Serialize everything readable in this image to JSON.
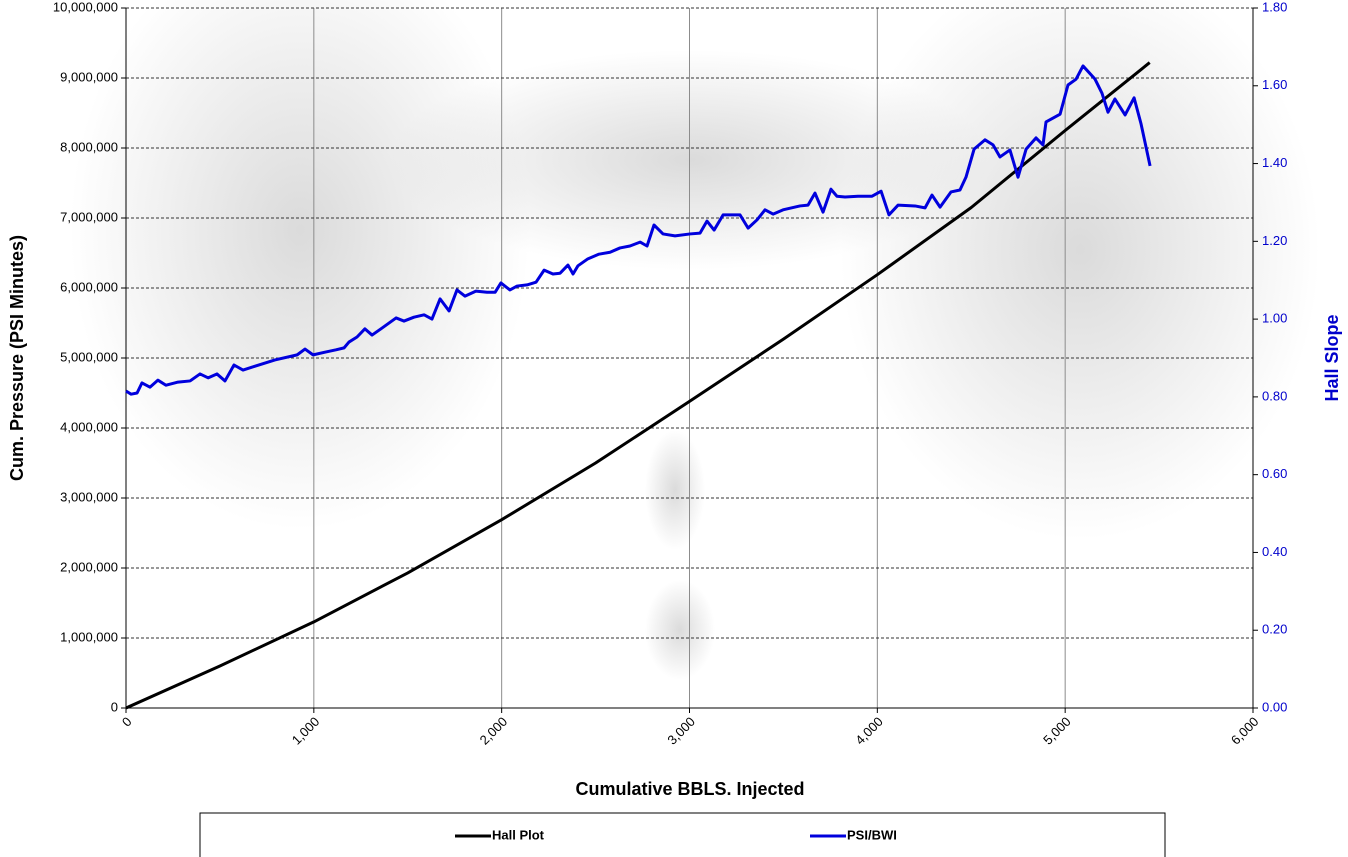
{
  "chart_data": {
    "type": "line",
    "xlabel": "Cumulative BBLS. Injected",
    "ylabel": "Cum. Pressure (PSI Minutes)",
    "y2label": "Hall Slope",
    "xlim": [
      0,
      6000
    ],
    "xticks": [
      0,
      {
        "value": 1000,
        "label": "1,000"
      },
      {
        "value": 2000,
        "label": "2,000"
      },
      {
        "value": 3000,
        "label": "3,000"
      },
      {
        "value": 4000,
        "label": "4,000"
      },
      {
        "value": 5000,
        "label": "5,000"
      },
      {
        "value": 6000,
        "label": "6,000"
      }
    ],
    "ylim": [
      0,
      10000000
    ],
    "yticks": [
      0,
      {
        "value": 1000000,
        "label": "1,000,000"
      },
      {
        "value": 2000000,
        "label": "2,000,000"
      },
      {
        "value": 3000000,
        "label": "3,000,000"
      },
      {
        "value": 4000000,
        "label": "4,000,000"
      },
      {
        "value": 5000000,
        "label": "5,000,000"
      },
      {
        "value": 6000000,
        "label": "6,000,000"
      },
      {
        "value": 7000000,
        "label": "7,000,000"
      },
      {
        "value": 8000000,
        "label": "8,000,000"
      },
      {
        "value": 9000000,
        "label": "9,000,000"
      },
      {
        "value": 10000000,
        "label": "10,000,000"
      }
    ],
    "y2lim": [
      0,
      1.8
    ],
    "y2ticks": [
      {
        "value": 0,
        "label": "0.00"
      },
      {
        "value": 0.2,
        "label": "0.20"
      },
      {
        "value": 0.4,
        "label": "0.40"
      },
      {
        "value": 0.6,
        "label": "0.60"
      },
      {
        "value": 0.8,
        "label": "0.80"
      },
      {
        "value": 1.0,
        "label": "1.00"
      },
      {
        "value": 1.2,
        "label": "1.20"
      },
      {
        "value": 1.4,
        "label": "1.40"
      },
      {
        "value": 1.6,
        "label": "1.60"
      },
      {
        "value": 1.8,
        "label": "1.80"
      }
    ],
    "grid": true,
    "y2color": "#0000cc",
    "series": [
      {
        "name": "Hall Plot",
        "color": "#000000",
        "x": [
          0,
          500,
          1000,
          1500,
          2000,
          2500,
          3000,
          3500,
          4000,
          4500,
          5000,
          5450
        ],
        "values": [
          0,
          600000,
          1230000,
          1930000,
          2690000,
          3500000,
          4380000,
          5270000,
          6190000,
          7150000,
          8250000,
          9220000
        ]
      },
      {
        "name": "PSI/BWI",
        "color": "#0000dd",
        "axis": "y2",
        "x": [
          0,
          27,
          59,
          85,
          128,
          170,
          213,
          277,
          341,
          394,
          437,
          484,
          527,
          575,
          623,
          687,
          793,
          911,
          953,
          996,
          1059,
          1118,
          1161,
          1187,
          1230,
          1272,
          1310,
          1363,
          1438,
          1480,
          1533,
          1587,
          1629,
          1672,
          1720,
          1762,
          1805,
          1863,
          1922,
          1965,
          1996,
          2044,
          2082,
          2135,
          2183,
          2226,
          2273,
          2311,
          2353,
          2380,
          2406,
          2459,
          2518,
          2577,
          2630,
          2683,
          2737,
          2774,
          2811,
          2859,
          2923,
          3003,
          3056,
          3093,
          3131,
          3179,
          3269,
          3312,
          3359,
          3402,
          3445,
          3498,
          3588,
          3631,
          3668,
          3711,
          3753,
          3785,
          3828,
          3897,
          3972,
          4020,
          4062,
          4110,
          4201,
          4254,
          4291,
          4334,
          4392,
          4440,
          4472,
          4515,
          4573,
          4616,
          4653,
          4706,
          4749,
          4792,
          4845,
          4882,
          4898,
          4973,
          5015,
          5058,
          5095,
          5159,
          5196,
          5228,
          5265,
          5319,
          5367,
          5404,
          5452
        ],
        "values": [
          0.815,
          0.807,
          0.81,
          0.836,
          0.825,
          0.843,
          0.83,
          0.838,
          0.841,
          0.859,
          0.849,
          0.859,
          0.841,
          0.882,
          0.869,
          0.879,
          0.895,
          0.908,
          0.923,
          0.908,
          0.915,
          0.921,
          0.926,
          0.941,
          0.954,
          0.975,
          0.959,
          0.977,
          1.003,
          0.995,
          1.005,
          1.011,
          1.0,
          1.052,
          1.021,
          1.075,
          1.059,
          1.072,
          1.069,
          1.069,
          1.093,
          1.075,
          1.085,
          1.088,
          1.095,
          1.126,
          1.116,
          1.118,
          1.139,
          1.116,
          1.137,
          1.155,
          1.167,
          1.172,
          1.183,
          1.188,
          1.198,
          1.188,
          1.242,
          1.219,
          1.214,
          1.219,
          1.221,
          1.252,
          1.229,
          1.268,
          1.268,
          1.234,
          1.255,
          1.281,
          1.27,
          1.281,
          1.291,
          1.293,
          1.324,
          1.275,
          1.334,
          1.316,
          1.314,
          1.316,
          1.316,
          1.329,
          1.268,
          1.293,
          1.291,
          1.286,
          1.319,
          1.288,
          1.327,
          1.332,
          1.365,
          1.437,
          1.461,
          1.448,
          1.417,
          1.435,
          1.365,
          1.437,
          1.466,
          1.448,
          1.507,
          1.527,
          1.602,
          1.617,
          1.651,
          1.617,
          1.581,
          1.532,
          1.566,
          1.525,
          1.569,
          1.502,
          1.394
        ]
      }
    ]
  }
}
